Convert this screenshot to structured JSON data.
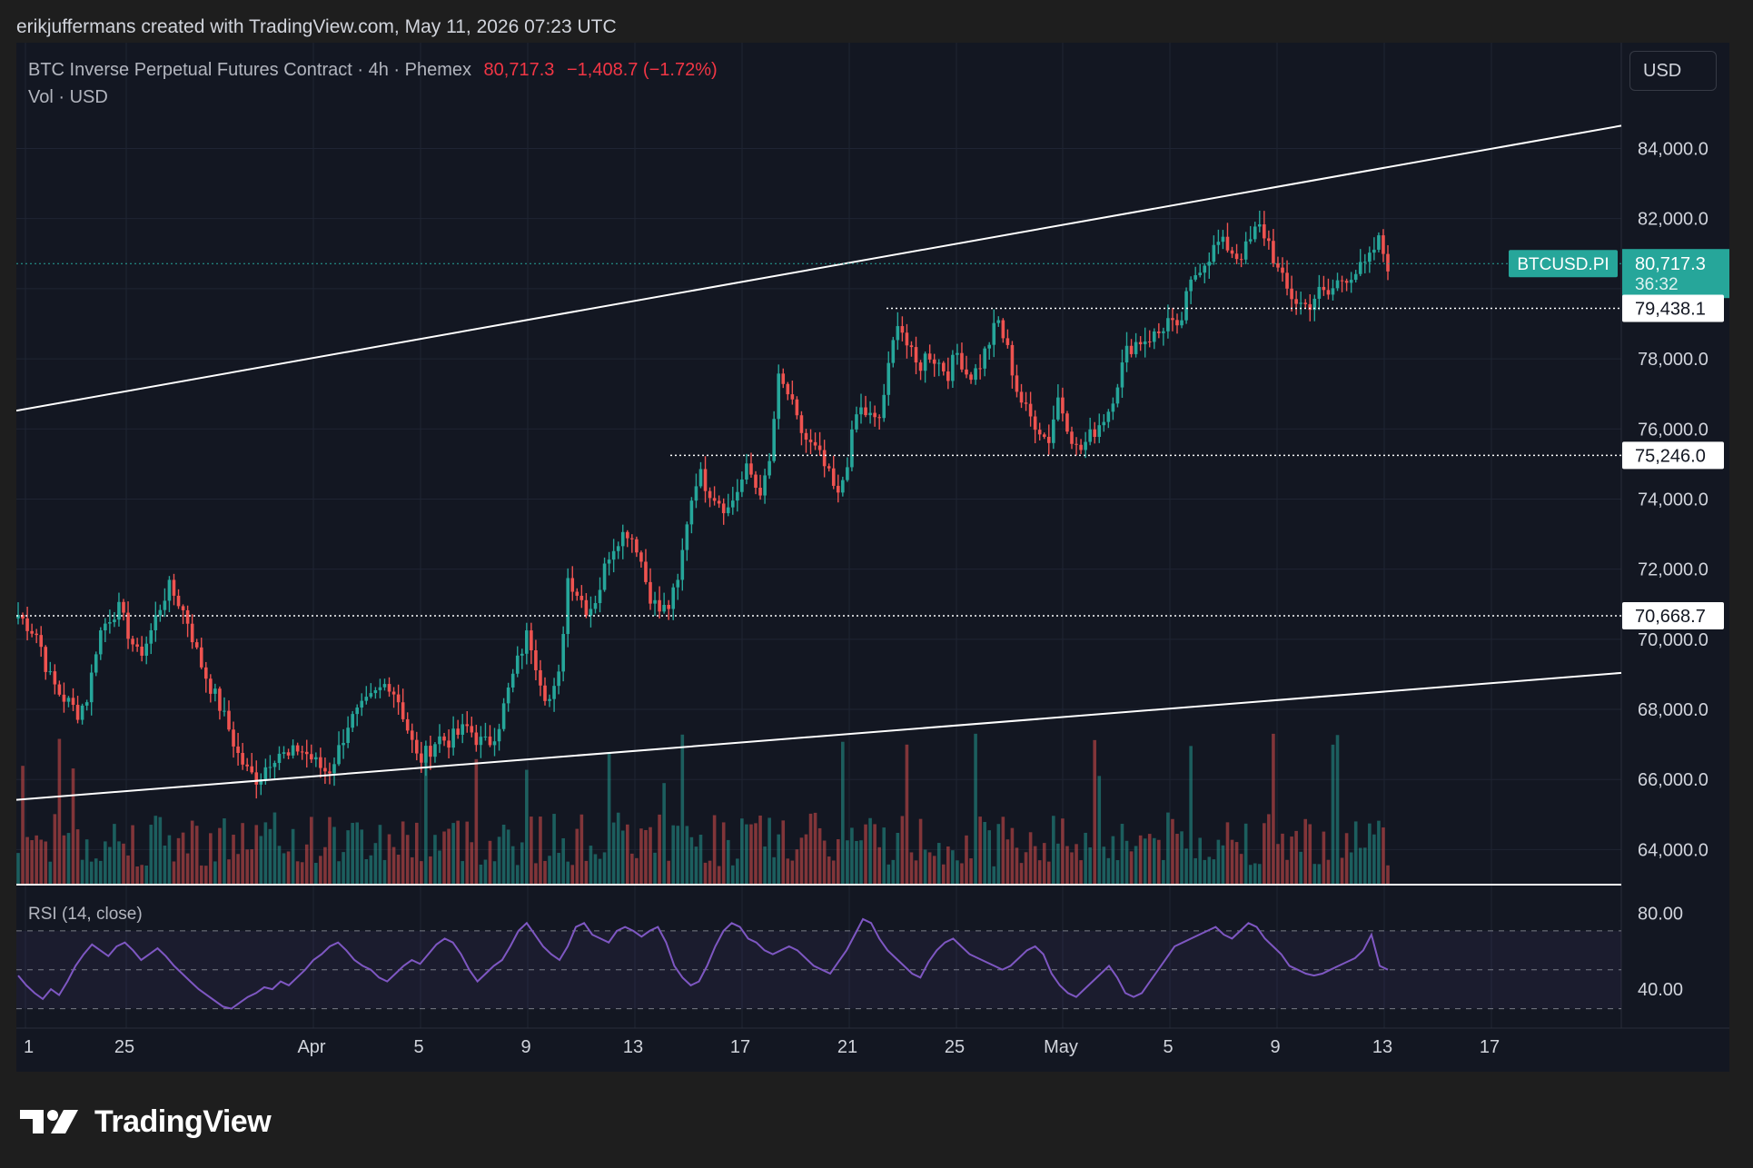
{
  "attribution": "erikjuffermans created with TradingView.com, May 11, 2026 07:23 UTC",
  "legend": {
    "symbol_desc": "BTC Inverse Perpetual Futures Contract · 4h · Phemex",
    "last": "80,717.3",
    "change": "−1,408.7 (−1.72%)",
    "line2": "Vol · USD"
  },
  "currency": "USD",
  "brand": "TradingView",
  "rsi": {
    "label": "RSI (14, close)",
    "axis_labels": [
      "80.00",
      "40.00"
    ],
    "bands": [
      70,
      50,
      30
    ],
    "values": [
      47,
      42,
      38,
      35,
      40,
      37,
      44,
      52,
      58,
      63,
      60,
      57,
      62,
      64,
      60,
      55,
      58,
      61,
      57,
      52,
      48,
      44,
      40,
      37,
      34,
      31,
      30,
      33,
      36,
      38,
      41,
      40,
      44,
      42,
      46,
      50,
      55,
      58,
      62,
      64,
      60,
      55,
      52,
      50,
      46,
      44,
      48,
      52,
      55,
      53,
      58,
      63,
      66,
      64,
      58,
      50,
      44,
      48,
      52,
      55,
      62,
      70,
      74,
      68,
      62,
      58,
      55,
      62,
      72,
      74,
      68,
      66,
      64,
      70,
      72,
      70,
      67,
      70,
      72,
      64,
      52,
      46,
      42,
      44,
      52,
      62,
      70,
      74,
      72,
      66,
      64,
      60,
      58,
      60,
      62,
      60,
      56,
      52,
      50,
      48,
      54,
      60,
      68,
      76,
      74,
      66,
      60,
      56,
      52,
      48,
      46,
      54,
      60,
      64,
      66,
      62,
      58,
      56,
      54,
      52,
      50,
      52,
      56,
      60,
      62,
      58,
      48,
      42,
      38,
      36,
      40,
      44,
      48,
      52,
      46,
      38,
      36,
      38,
      44,
      50,
      56,
      62,
      64,
      66,
      68,
      70,
      72,
      68,
      66,
      70,
      74,
      72,
      66,
      62,
      58,
      52,
      50,
      48,
      47,
      48,
      50,
      52,
      54,
      56,
      60,
      68,
      52,
      50
    ]
  },
  "price_markers": [
    {
      "value": "80,717.3",
      "sub": "36:32",
      "name": "BTCUSD.PI"
    },
    {
      "value": "79,438.1"
    },
    {
      "value": "75,246.0"
    },
    {
      "value": "70,668.7"
    }
  ],
  "time_axis": {
    "labels": [
      "1",
      "25",
      "Apr",
      "5",
      "9",
      "13",
      "17",
      "21",
      "25",
      "May",
      "5",
      "9",
      "13",
      "17"
    ]
  },
  "chart_data": {
    "type": "candlestick",
    "title": "BTC Inverse Perpetual Futures Contract · 4h · Phemex",
    "interval": "4h",
    "ylim": [
      63000,
      86500
    ],
    "y_ticks": [
      "84,000.0",
      "82,000.0",
      "80,000.0",
      "78,000.0",
      "76,000.0",
      "74,000.0",
      "72,000.0",
      "70,000.0",
      "68,000.0",
      "66,000.0",
      "64,000.0"
    ],
    "x_labels": [
      "1",
      "25",
      "Apr",
      "5",
      "9",
      "13",
      "17",
      "21",
      "25",
      "May",
      "5",
      "9",
      "13",
      "17"
    ],
    "close_path": [
      70700,
      70400,
      70100,
      69000,
      68500,
      68200,
      67900,
      68400,
      70100,
      70600,
      70900,
      70200,
      69500,
      70000,
      70800,
      71500,
      71100,
      70500,
      69500,
      68800,
      68200,
      67500,
      66700,
      66200,
      66000,
      66500,
      66800,
      66600,
      66900,
      66700,
      66400,
      66200,
      66800,
      67600,
      67900,
      68200,
      68500,
      68800,
      68300,
      67400,
      66500,
      66800,
      67200,
      67100,
      67300,
      67500,
      67100,
      67000,
      67500,
      68500,
      69400,
      70200,
      69100,
      68200,
      68700,
      71800,
      71300,
      70800,
      71300,
      72400,
      72900,
      73100,
      72600,
      71400,
      70800,
      70900,
      71600,
      73600,
      74800,
      74300,
      74000,
      73700,
      74300,
      74900,
      74200,
      74600,
      77400,
      77000,
      76100,
      75600,
      75300,
      74700,
      74000,
      75200,
      76600,
      76400,
      76100,
      77600,
      79200,
      78300,
      77700,
      78200,
      77900,
      77600,
      78200,
      77500,
      77700,
      78400,
      79100,
      78200,
      77000,
      76400,
      76100,
      75600,
      76900,
      76100,
      75300,
      75700,
      76100,
      76500,
      77400,
      78300,
      78500,
      78600,
      78700,
      79100,
      78700,
      79900,
      80600,
      80900,
      81300,
      81200,
      80900,
      81200,
      81800,
      81400,
      80500,
      79900,
      79600,
      79500,
      79900,
      79800,
      80200,
      80400,
      80500,
      80700,
      81400,
      80700
    ],
    "horizontal_levels": [
      79438.1,
      75246.0,
      70668.7
    ],
    "trendlines": [
      {
        "x": [
          "1",
          "17+"
        ],
        "y": [
          76520,
          84650
        ]
      },
      {
        "x": [
          "1",
          "17+"
        ],
        "y": [
          65420,
          69040
        ]
      }
    ],
    "last_price": 80717.3,
    "volume_label": "Vol · USD"
  }
}
